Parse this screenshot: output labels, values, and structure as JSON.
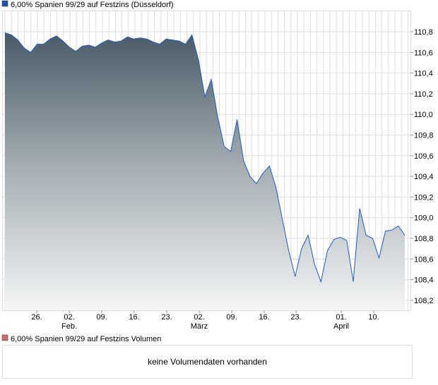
{
  "chart_data": {
    "type": "area",
    "title": "6,00% Spanien 99/29 auf Festzins (Düsseldorf)",
    "series_color": "#1f5bbf",
    "legend_color": "#1f4fa8",
    "ylim": [
      108.1,
      111.0
    ],
    "yticks": [
      "110,8",
      "110,6",
      "110,4",
      "110,2",
      "110,0",
      "109,8",
      "109,6",
      "109,4",
      "109,2",
      "109,0",
      "108,8",
      "108,6",
      "108,4",
      "108,2"
    ],
    "ytick_values": [
      110.8,
      110.6,
      110.4,
      110.2,
      110.0,
      109.8,
      109.6,
      109.4,
      109.2,
      109.0,
      108.8,
      108.6,
      108.4,
      108.2
    ],
    "xticks": [
      "26.",
      "02.",
      "09.",
      "16.",
      "23.",
      "02.",
      "09.",
      "16.",
      "23.",
      "01.",
      "10."
    ],
    "xmonths": [
      "Feb.",
      "März",
      "April"
    ],
    "grid": true,
    "values": [
      110.79,
      110.77,
      110.72,
      110.64,
      110.6,
      110.68,
      110.68,
      110.73,
      110.76,
      110.71,
      110.65,
      110.61,
      110.66,
      110.67,
      110.65,
      110.69,
      110.72,
      110.7,
      110.71,
      110.75,
      110.73,
      110.74,
      110.73,
      110.7,
      110.68,
      110.73,
      110.72,
      110.71,
      110.68,
      110.77,
      110.53,
      110.17,
      110.34,
      109.97,
      109.69,
      109.64,
      109.95,
      109.55,
      109.4,
      109.33,
      109.43,
      109.5,
      109.3,
      108.99,
      108.68,
      108.43,
      108.7,
      108.83,
      108.55,
      108.38,
      108.68,
      108.79,
      108.81,
      108.78,
      108.38,
      109.09,
      108.83,
      108.8,
      108.61,
      108.87,
      108.88,
      108.92,
      108.83
    ]
  },
  "volume": {
    "title": "6,00% Spanien 99/29 auf Festzins Volumen",
    "legend_color": "#d46a6a",
    "message": "keine Volumendaten vorhanden"
  }
}
